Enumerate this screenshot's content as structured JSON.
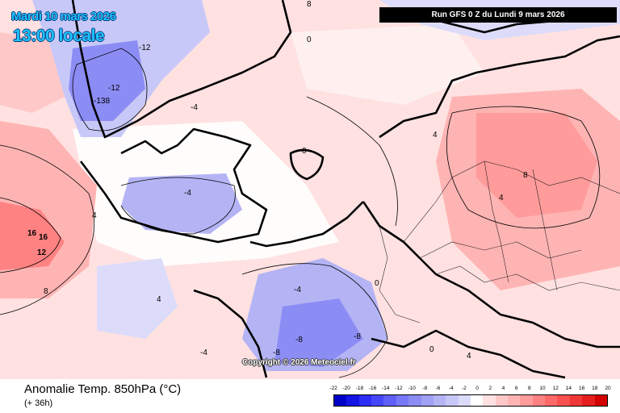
{
  "header": {
    "date": "Mardi 10 mars 2026",
    "time": "13:00 locale",
    "run": "Run GFS 0 Z du Lundi 9 mars 2026"
  },
  "footer": {
    "title": "Anomalie Temp. 850hPa (°C)",
    "lead": "(+ 36h)",
    "copyright": "Copyright © 2026 Meteociel.fr"
  },
  "legend": {
    "ticks": [
      "-22",
      "-20",
      "-18",
      "-16",
      "-14",
      "-12",
      "-10",
      "-8",
      "-6",
      "-4",
      "-2",
      "0",
      "2",
      "4",
      "6",
      "8",
      "10",
      "12",
      "14",
      "16",
      "18",
      "20"
    ],
    "colors": [
      "#0000c8",
      "#1414e6",
      "#2d2df5",
      "#4646fa",
      "#5f5ffa",
      "#7878fa",
      "#8c8cf5",
      "#a0a0f5",
      "#b4b4f5",
      "#c8c8f8",
      "#dcdcfa",
      "#ffffff",
      "#ffe1e1",
      "#ffc8c8",
      "#ffb4b4",
      "#ff9b9b",
      "#ff8282",
      "#ff6969",
      "#fa5050",
      "#f03737",
      "#e61e1e",
      "#d20000"
    ]
  },
  "map_labels": [
    {
      "id": "lbl-greenland-12a",
      "text": "-12"
    },
    {
      "id": "lbl-greenland-12b",
      "text": "-12"
    },
    {
      "id": "lbl-greenland-138",
      "text": "-138"
    },
    {
      "id": "lbl-atl-16a",
      "text": "16"
    },
    {
      "id": "lbl-atl-16b",
      "text": "16"
    },
    {
      "id": "lbl-atl-12",
      "text": "12"
    },
    {
      "id": "lbl-atl-8",
      "text": "8"
    },
    {
      "id": "lbl-atl-4",
      "text": "4"
    },
    {
      "id": "lbl-atl-m4",
      "text": "-4"
    },
    {
      "id": "lbl-iceland-0",
      "text": "0"
    },
    {
      "id": "lbl-norway-4",
      "text": "4"
    },
    {
      "id": "lbl-russia-8",
      "text": "8"
    },
    {
      "id": "lbl-russia-4",
      "text": "4"
    },
    {
      "id": "lbl-iberia-m8a",
      "text": "-8"
    },
    {
      "id": "lbl-iberia-m8b",
      "text": "-8"
    },
    {
      "id": "lbl-iberia-m8c",
      "text": "-8"
    },
    {
      "id": "lbl-iberia-m4",
      "text": "-4"
    },
    {
      "id": "lbl-france-0",
      "text": "0"
    },
    {
      "id": "lbl-med-0",
      "text": "0"
    },
    {
      "id": "lbl-med-4",
      "text": "4"
    },
    {
      "id": "lbl-arctic-8",
      "text": "8"
    },
    {
      "id": "lbl-arctic-0",
      "text": "0"
    },
    {
      "id": "lbl-sea-m4",
      "text": "-4"
    },
    {
      "id": "lbl-azores-4",
      "text": "4"
    },
    {
      "id": "lbl-africa-m4",
      "text": "-4"
    }
  ]
}
